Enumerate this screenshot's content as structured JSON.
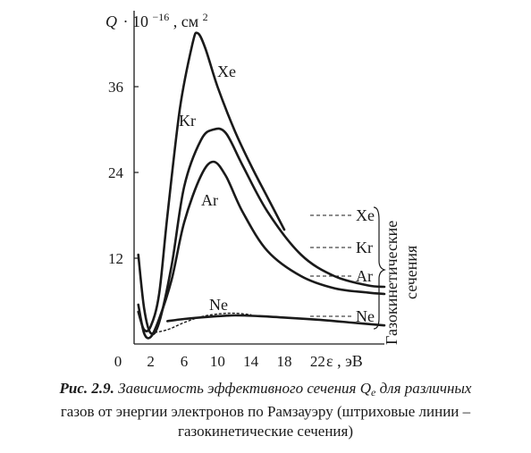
{
  "chart_data": {
    "type": "line",
    "ylabel": {
      "symbol": "Q",
      "dot": "·",
      "base": "10",
      "exp": "−16",
      "unit": ", см",
      "unit_exp": "2"
    },
    "xlabel": {
      "symbol": "ε",
      "unit": ", эВ"
    },
    "xlim": [
      0,
      30
    ],
    "ylim": [
      0,
      45
    ],
    "x_ticks": [
      "0",
      "2",
      "6",
      "10",
      "14",
      "18",
      "22"
    ],
    "x_tick_values": [
      0,
      2,
      6,
      10,
      14,
      18,
      22
    ],
    "y_ticks": [
      "12",
      "24",
      "36"
    ],
    "y_tick_values": [
      12,
      24,
      36
    ],
    "grid": false,
    "series": [
      {
        "name": "Xe",
        "x": [
          0.5,
          1.2,
          2,
          3,
          4,
          5.5,
          7,
          7.6,
          8.5,
          10,
          12,
          14,
          16,
          18
        ],
        "y": [
          4.5,
          2,
          2.5,
          7,
          18,
          33,
          42,
          43.5,
          41.5,
          36,
          30,
          25,
          20.5,
          16
        ]
      },
      {
        "name": "Kr",
        "x": [
          0.5,
          1.2,
          2,
          3,
          4.5,
          6,
          8,
          9.5,
          11,
          13,
          16,
          20,
          24,
          28,
          30
        ],
        "y": [
          12.5,
          5,
          1.5,
          3,
          11,
          22,
          28.5,
          30,
          29.5,
          25,
          18.5,
          12.5,
          9.5,
          8.2,
          8
        ]
      },
      {
        "name": "Ar",
        "x": [
          0.5,
          1.2,
          2,
          3,
          4.5,
          6,
          8,
          9.5,
          11,
          13,
          16,
          20,
          24,
          28,
          30
        ],
        "y": [
          5.5,
          1.5,
          1,
          3.5,
          9,
          17,
          23.5,
          25.5,
          23.5,
          18.5,
          13,
          9.5,
          7.8,
          7.2,
          7
        ]
      },
      {
        "name": "Ne",
        "x": [
          4,
          6,
          9,
          12,
          15,
          18,
          22,
          26,
          30
        ],
        "y": [
          3.2,
          3.5,
          3.8,
          4,
          3.9,
          3.7,
          3.4,
          3.0,
          2.6
        ]
      },
      {
        "name": "Ne (штриховая)",
        "dashed": true,
        "x": [
          2,
          4,
          6,
          8,
          10,
          12,
          14
        ],
        "y": [
          1.5,
          2,
          3,
          3.8,
          4.2,
          4.3,
          4.1
        ]
      }
    ],
    "series_labels": [
      "Xe",
      "Kr",
      "Ar",
      "Ne"
    ],
    "gas_kinetic": {
      "entries": [
        {
          "name": "Xe",
          "value": 18
        },
        {
          "name": "Kr",
          "value": 14
        },
        {
          "name": "Ar",
          "value": 10
        },
        {
          "name": "Ne",
          "value": 4
        }
      ],
      "label_line1": "Газокинетические",
      "label_line2": "сечения"
    }
  },
  "caption": {
    "lead": "Рис. 2.9.",
    "text1": " Зависимость эффективного сечения ",
    "symbol": "Q",
    "sub": "e",
    "text2": " для различных",
    "line2": "газов от энергии электронов по Рамзауэру (штриховые линии –",
    "line3": "газокинетические сечения)"
  }
}
